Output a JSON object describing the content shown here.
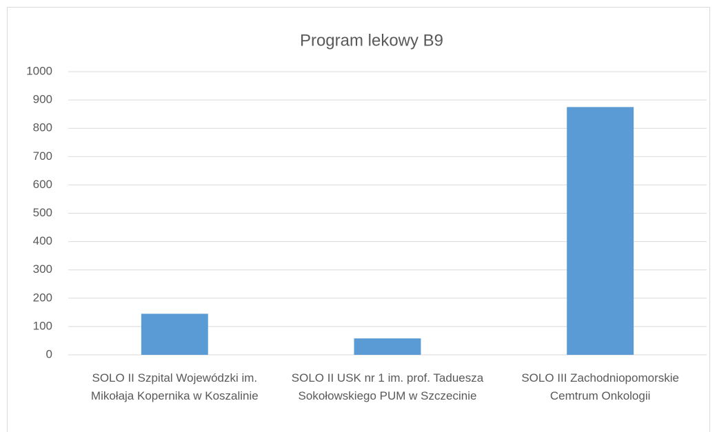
{
  "chart_data": {
    "type": "bar",
    "title": "Program lekowy B9",
    "categories": [
      "SOLO II Szpital Wojewódzki im. Mikołaja Kopernika w Koszalinie",
      "SOLO II USK nr 1 im. prof. Taduesza Sokołowskiego PUM w Szczecinie",
      "SOLO III Zachodniopomorskie Cemtrum Onkologii"
    ],
    "values": [
      145,
      58,
      875
    ],
    "color": "#5b9bd5",
    "ylim": [
      0,
      1000
    ],
    "yticks": [
      0,
      100,
      200,
      300,
      400,
      500,
      600,
      700,
      800,
      900,
      1000
    ],
    "grid": true
  }
}
